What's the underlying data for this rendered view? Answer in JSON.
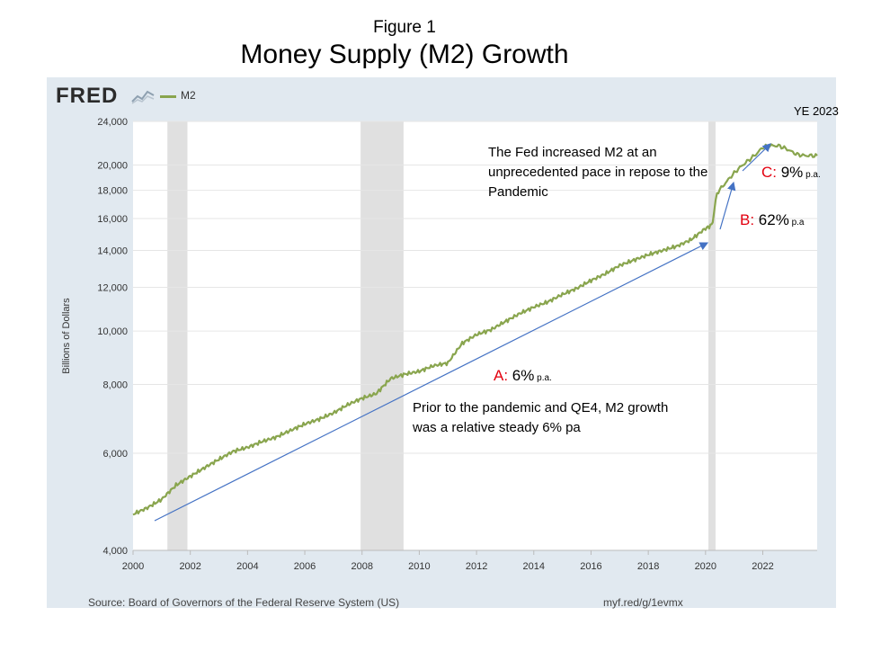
{
  "figure_label": "Figure 1",
  "title": "Money Supply (M2) Growth",
  "fred": {
    "logo": "FRED",
    "graph_icon": "chart-line-icon",
    "source": "Source: Board of Governors of the Federal Reserve System (US)",
    "shortlink": "myf.red/g/1evmx"
  },
  "ye_label": "YE 2023",
  "annotations": {
    "a_letter": "A:",
    "a_rate": " 6%",
    "a_unit": " p.a.",
    "b_letter": "B:",
    "b_rate": " 62%",
    "b_unit": " p.a",
    "c_letter": "C:",
    "c_rate": " 9%",
    "c_unit": " p.a.",
    "note_pandemic": "The Fed increased  M2 at an unprecedented pace in repose to the Pandemic",
    "note_prior": "Prior to the pandemic and QE4, M2 growth was a relative steady 6% pa"
  },
  "colors": {
    "series": "#89a54e",
    "recession": "#e0e0e0",
    "arrow": "#4472c4",
    "panel": "#e1e9f0",
    "accent_red": "#e3000f"
  },
  "chart_data": {
    "type": "line",
    "ylabel": "Billions of Dollars",
    "yscale": "log",
    "ylim": [
      4000,
      24000
    ],
    "xlim": [
      2000,
      2023.9
    ],
    "yticks": [
      4000,
      6000,
      8000,
      10000,
      12000,
      14000,
      16000,
      18000,
      20000,
      24000
    ],
    "ytick_labels": [
      "4,000",
      "6,000",
      "8,000",
      "10,000",
      "12,000",
      "14,000",
      "16,000",
      "18,000",
      "20,000",
      "24,000"
    ],
    "xticks": [
      2000,
      2002,
      2004,
      2006,
      2008,
      2010,
      2012,
      2014,
      2016,
      2018,
      2020,
      2022
    ],
    "xtick_labels": [
      "2000",
      "2002",
      "2004",
      "2006",
      "2008",
      "2010",
      "2012",
      "2014",
      "2016",
      "2018",
      "2020",
      "2022"
    ],
    "grid": true,
    "legend": "top-left",
    "recessions": [
      [
        2001.2,
        2001.9
      ],
      [
        2007.95,
        2009.45
      ],
      [
        2020.1,
        2020.35
      ]
    ],
    "series": [
      {
        "name": "M2",
        "x": [
          2000.0,
          2000.5,
          2001.0,
          2001.5,
          2002.0,
          2002.5,
          2003.0,
          2003.5,
          2004.0,
          2004.5,
          2005.0,
          2005.5,
          2006.0,
          2006.5,
          2007.0,
          2007.5,
          2008.0,
          2008.5,
          2009.0,
          2009.5,
          2010.0,
          2010.5,
          2011.0,
          2011.5,
          2012.0,
          2012.5,
          2013.0,
          2013.5,
          2014.0,
          2014.5,
          2015.0,
          2015.5,
          2016.0,
          2016.5,
          2017.0,
          2017.5,
          2018.0,
          2018.5,
          2019.0,
          2019.5,
          2020.0,
          2020.17,
          2020.25,
          2020.4,
          2020.6,
          2020.9,
          2021.2,
          2021.5,
          2021.8,
          2022.0,
          2022.3,
          2022.6,
          2022.9,
          2023.2,
          2023.5,
          2023.9
        ],
        "y": [
          4650,
          4780,
          4950,
          5250,
          5450,
          5650,
          5850,
          6050,
          6150,
          6300,
          6420,
          6600,
          6780,
          6920,
          7100,
          7350,
          7550,
          7700,
          8200,
          8350,
          8450,
          8650,
          8750,
          9500,
          9850,
          10050,
          10400,
          10750,
          11050,
          11300,
          11650,
          11950,
          12350,
          12700,
          13150,
          13450,
          13750,
          14000,
          14250,
          14650,
          15350,
          15500,
          15800,
          17800,
          18300,
          19100,
          19800,
          20400,
          21000,
          21550,
          21700,
          21650,
          21300,
          20900,
          20800,
          20800
        ]
      }
    ]
  }
}
